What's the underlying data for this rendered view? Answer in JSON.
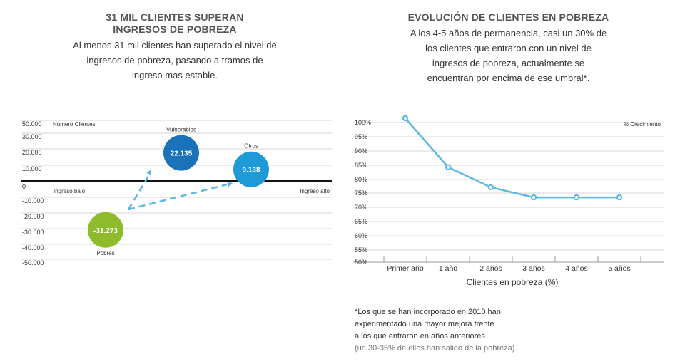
{
  "left": {
    "title_line1": "31 MIL CLIENTES SUPERAN",
    "title_line2": "INGRESOS DE POBREZA",
    "sub_line1": "Al menos 31 mil clientes han superado el nivel de",
    "sub_line2": "ingresos de pobreza, pasando a tramos de",
    "sub_line3": "ingreso mas estable."
  },
  "right": {
    "title": "EVOLUCIÓN DE CLIENTES EN POBREZA",
    "sub_line1": "A los 4-5 años de permanencia, casi un 30% de",
    "sub_line2": "los clientes que entraron con un nivel de",
    "sub_line3": "ingresos de pobreza, actualmente se",
    "sub_line4": "encuentran por encima de ese umbral*."
  },
  "footnote": {
    "line1": "*Los que se han incorporado en 2010 han",
    "line2": "experimentado una mayor mejora frente",
    "line3": "a los que entraron en años anteriores",
    "line4": "(un 30-35% de ellos han salido de la pobreza)."
  },
  "chart_data": [
    {
      "type": "scatter",
      "ylabel": "Número Clientes",
      "x_left_label": "Ingreso bajo",
      "x_right_label": "Ingreso alto",
      "y_ticks": [
        "50.000",
        "30.000",
        "20.000",
        "10.000",
        "0",
        "-10.000",
        "-20.000",
        "-30.000",
        "-40.000",
        "-50.000"
      ],
      "ylim": [
        -50000,
        50000
      ],
      "grid": true,
      "points": [
        {
          "name": "Pobres",
          "value": -31273,
          "label": "-31.273",
          "color": "#8dbb2c",
          "income_position": "low"
        },
        {
          "name": "Vulnerables",
          "value": 22135,
          "label": "22.135",
          "color": "#1a73b8",
          "income_position": "middle"
        },
        {
          "name": "Otros",
          "value": 9138,
          "label": "9.138",
          "color": "#1f9ad6",
          "income_position": "high"
        }
      ],
      "arrow_color": "#5bb7e3"
    },
    {
      "type": "line",
      "xlabel": "Clientes en pobreza (%)",
      "ylabel": "% Crecimiento",
      "categories": [
        "Primer año",
        "1 año",
        "2 años",
        "3 años",
        "4 años",
        "5 años"
      ],
      "values": [
        100,
        83,
        76,
        72.5,
        72.5,
        72.5
      ],
      "y_ticks": [
        "100%",
        "95%",
        "90%",
        "85%",
        "80%",
        "75%",
        "70%",
        "65%",
        "60%",
        "55%",
        "50%"
      ],
      "ylim": [
        50,
        100
      ],
      "grid": true,
      "line_color": "#5bb7e3"
    }
  ]
}
